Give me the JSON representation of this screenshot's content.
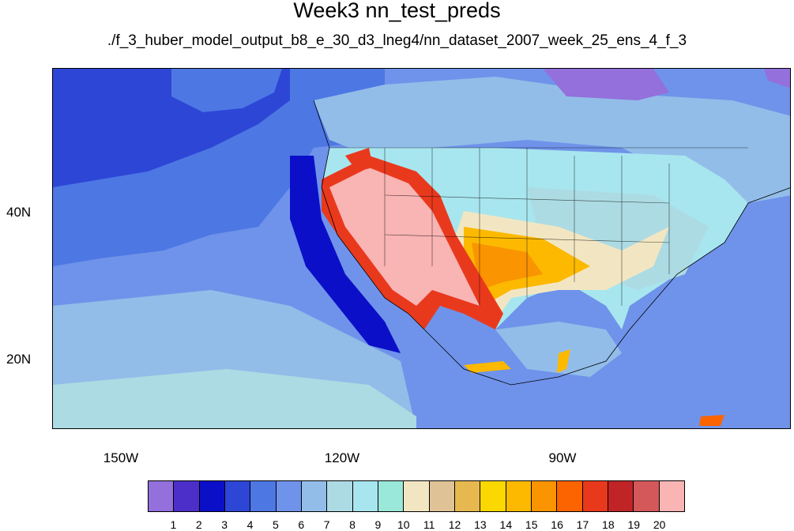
{
  "title": "Week3 nn_test_preds",
  "subtitle": "./f_3_huber_model_output_b8_e_30_d3_lneg4/nn_dataset_2007_week_25_ens_4_f_3",
  "axes": {
    "x_ticks": [
      "150W",
      "120W",
      "90W"
    ],
    "y_ticks": [
      "40N",
      "20N"
    ]
  },
  "legend": {
    "colors": [
      "#9370db",
      "#4b2fc8",
      "#0b10c8",
      "#2d46d6",
      "#4d77e3",
      "#6f93ea",
      "#92bde9",
      "#addbe3",
      "#a7e6ee",
      "#9ae8d9",
      "#f2e6c2",
      "#dfc296",
      "#e7b84f",
      "#fbd800",
      "#fcb900",
      "#fa9400",
      "#fb6400",
      "#e9391d",
      "#c02426",
      "#d4585a",
      "#f9b4b4"
    ],
    "labels": [
      "1",
      "2",
      "3",
      "4",
      "5",
      "6",
      "7",
      "8",
      "9",
      "10",
      "11",
      "12",
      "13",
      "14",
      "15",
      "16",
      "17",
      "18",
      "19",
      "20"
    ]
  }
}
